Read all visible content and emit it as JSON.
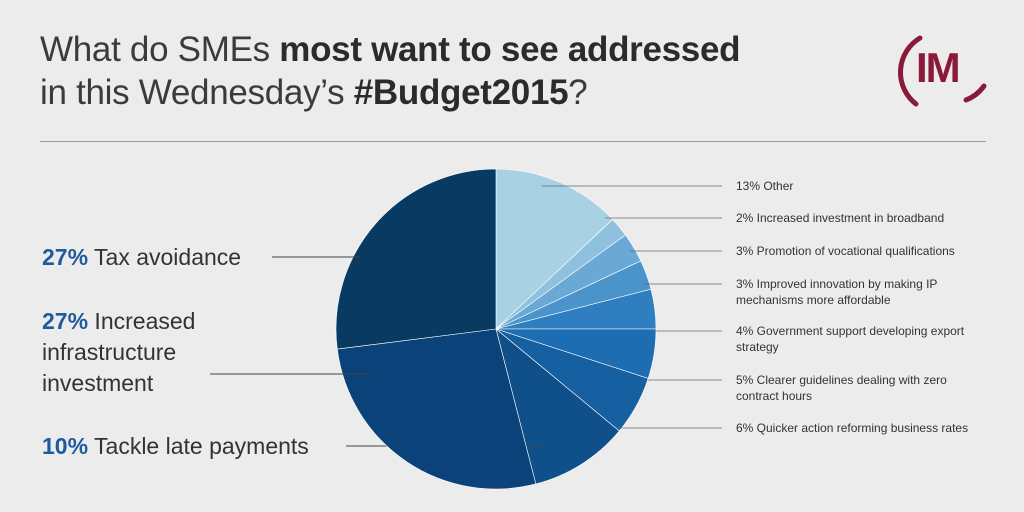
{
  "header": {
    "title_line1_regular": "What do SMEs ",
    "title_line1_bold": "most want to see addressed",
    "title_line2_regular": "in this Wednesday’s ",
    "title_line2_bold": "#Budget2015",
    "title_line2_end": "?"
  },
  "logo": {
    "text": "IM",
    "color": "#8b1a3a"
  },
  "chart_data": {
    "type": "pie",
    "title": "What do SMEs most want to see addressed in this Wednesday’s #Budget2015?",
    "slices": [
      {
        "pct": "13%",
        "label": "Other",
        "value": 13,
        "color": "#a8d1e3"
      },
      {
        "pct": "2%",
        "label": "Increased investment in broadband",
        "value": 2,
        "color": "#8fc1df"
      },
      {
        "pct": "3%",
        "label": "Promotion of vocational qualifications",
        "value": 3,
        "color": "#6aa9d6"
      },
      {
        "pct": "3%",
        "label": "Improved innovation by making IP mechanisms more affordable",
        "label_lines": [
          "Improved innovation by making IP",
          "mechanisms more affordable"
        ],
        "value": 3,
        "color": "#4a93cb"
      },
      {
        "pct": "4%",
        "label": "Government support developing export strategy",
        "label_lines": [
          "Government support developing export",
          "strategy"
        ],
        "value": 4,
        "color": "#2f7ec0"
      },
      {
        "pct": "5%",
        "label": "Clearer guidelines dealing with zero contract hours",
        "label_lines": [
          "Clearer guidelines dealing with zero",
          "contract hours"
        ],
        "value": 5,
        "color": "#1d6db2"
      },
      {
        "pct": "6%",
        "label": "Quicker action reforming business rates",
        "value": 6,
        "color": "#165fa0"
      },
      {
        "pct": "10%",
        "label": "Tackle late payments",
        "value": 10,
        "color": "#0f508a"
      },
      {
        "pct": "27%",
        "label": "Increased infrastructure investment",
        "label_lines": [
          "Increased",
          "infrastructure",
          "investment"
        ],
        "value": 27,
        "color": "#0b4279"
      },
      {
        "pct": "27%",
        "label": "Tax avoidance",
        "value": 27,
        "color": "#083a62"
      }
    ]
  }
}
